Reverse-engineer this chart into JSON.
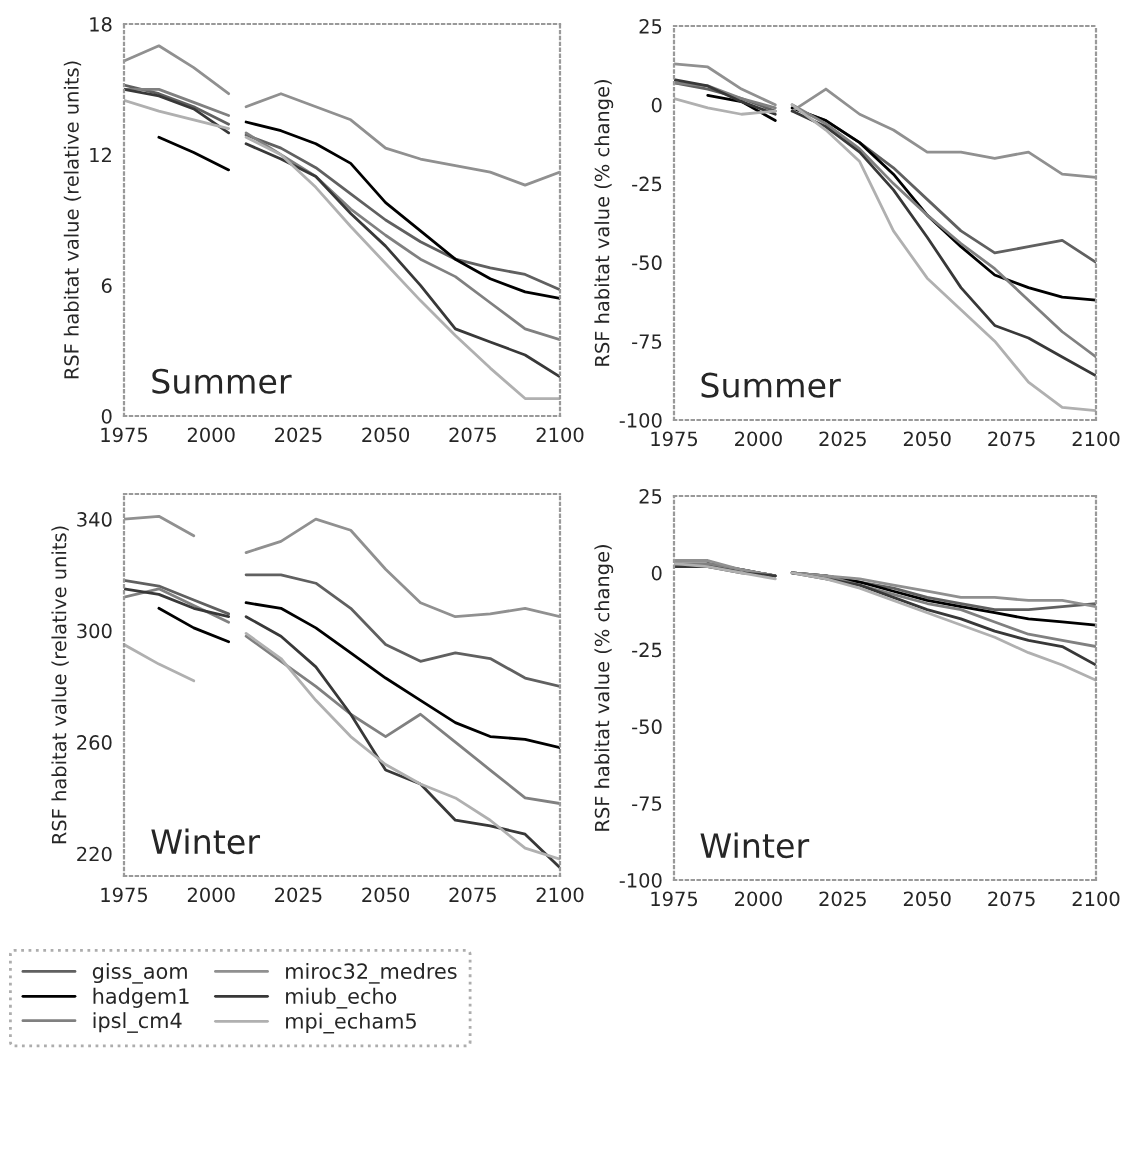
{
  "chart_data": [
    {
      "type": "line",
      "ylabel": "RSF habitat value (relative units)",
      "annotations": [
        "Summer"
      ],
      "x": [
        1975,
        1985,
        1995,
        2005,
        2008,
        2010,
        2020,
        2030,
        2040,
        2050,
        2060,
        2070,
        2080,
        2090,
        2100
      ],
      "xlim": [
        1975,
        2100
      ],
      "xticks": [
        1975,
        2000,
        2025,
        2050,
        2075,
        2100
      ],
      "ylim": [
        0,
        18
      ],
      "yticks": [
        0,
        6,
        12,
        18
      ],
      "grid": false,
      "legend": "bottom",
      "series": [
        {
          "name": "giss_aom",
          "color": "#606060",
          "values": [
            15.2,
            14.8,
            14.2,
            13.4,
            null,
            12.9,
            12.3,
            11.4,
            10.2,
            9.0,
            8.0,
            7.2,
            6.8,
            6.5,
            5.8
          ]
        },
        {
          "name": "hadgem1",
          "color": "#000000",
          "values": [
            null,
            12.8,
            12.1,
            11.3,
            null,
            13.5,
            13.1,
            12.5,
            11.6,
            9.8,
            8.5,
            7.2,
            6.3,
            5.7,
            5.4
          ]
        },
        {
          "name": "ipsl_cm4",
          "color": "#808080",
          "values": [
            15.0,
            15.0,
            14.4,
            13.8,
            null,
            13.0,
            12.0,
            11.0,
            9.5,
            8.3,
            7.2,
            6.4,
            5.2,
            4.0,
            3.5
          ]
        },
        {
          "name": "miroc32_medres",
          "color": "#909090",
          "values": [
            16.3,
            17.0,
            16.0,
            14.8,
            null,
            14.2,
            14.8,
            14.2,
            13.6,
            12.3,
            11.8,
            11.5,
            11.2,
            10.6,
            11.2
          ]
        },
        {
          "name": "miub_echo",
          "color": "#383838",
          "values": [
            15.0,
            14.7,
            14.1,
            13.0,
            null,
            12.5,
            11.8,
            11.0,
            9.3,
            7.8,
            6.0,
            4.0,
            3.4,
            2.8,
            1.8
          ]
        },
        {
          "name": "mpi_echam5",
          "color": "#b0b0b0",
          "values": [
            14.5,
            14.0,
            13.6,
            13.2,
            null,
            12.8,
            12.0,
            10.5,
            8.7,
            7.0,
            5.3,
            3.7,
            2.2,
            0.8,
            0.8
          ]
        }
      ]
    },
    {
      "type": "line",
      "ylabel": "RSF habitat value (% change)",
      "annotations": [
        "Summer"
      ],
      "x": [
        1975,
        1985,
        1995,
        2005,
        2008,
        2010,
        2020,
        2030,
        2040,
        2050,
        2060,
        2070,
        2080,
        2090,
        2100
      ],
      "xlim": [
        1975,
        2100
      ],
      "xticks": [
        1975,
        2000,
        2025,
        2050,
        2075,
        2100
      ],
      "ylim": [
        -100,
        25
      ],
      "yticks": [
        -100,
        -75,
        -50,
        -25,
        0,
        25
      ],
      "grid": false,
      "series": [
        {
          "color": "#606060",
          "values": [
            7,
            5,
            2,
            -2,
            null,
            -1,
            -5,
            -12,
            -20,
            -30,
            -40,
            -47,
            -45,
            -43,
            -50
          ]
        },
        {
          "color": "#000000",
          "values": [
            null,
            3,
            1,
            -5,
            null,
            -1,
            -5,
            -12,
            -22,
            -35,
            -45,
            -54,
            -58,
            -61,
            -62
          ]
        },
        {
          "color": "#808080",
          "values": [
            7,
            6,
            2,
            -1,
            null,
            0,
            -6,
            -14,
            -25,
            -35,
            -44,
            -52,
            -62,
            -72,
            -80
          ]
        },
        {
          "color": "#909090",
          "values": [
            13,
            12,
            5,
            0,
            null,
            -2,
            5,
            -3,
            -8,
            -15,
            -15,
            -17,
            -15,
            -22,
            -23
          ]
        },
        {
          "color": "#383838",
          "values": [
            8,
            6,
            1,
            -3,
            null,
            -2,
            -7,
            -15,
            -27,
            -42,
            -58,
            -70,
            -74,
            -80,
            -86
          ]
        },
        {
          "color": "#b0b0b0",
          "values": [
            2,
            -1,
            -3,
            -2,
            null,
            0,
            -8,
            -18,
            -40,
            -55,
            -65,
            -75,
            -88,
            -96,
            -97
          ]
        }
      ]
    },
    {
      "type": "line",
      "ylabel": "RSF habitat value (relative units)",
      "annotations": [
        "Winter"
      ],
      "x": [
        1975,
        1985,
        1995,
        2005,
        2008,
        2010,
        2020,
        2030,
        2040,
        2050,
        2060,
        2070,
        2080,
        2090,
        2100
      ],
      "xlim": [
        1975,
        2100
      ],
      "xticks": [
        1975,
        2000,
        2025,
        2050,
        2075,
        2100
      ],
      "ylim": [
        212,
        349
      ],
      "yticks": [
        220,
        260,
        300,
        340
      ],
      "grid": false,
      "series": [
        {
          "color": "#606060",
          "values": [
            318,
            316,
            311,
            306,
            null,
            320,
            320,
            317,
            308,
            295,
            289,
            292,
            290,
            283,
            280
          ]
        },
        {
          "color": "#000000",
          "values": [
            null,
            308,
            301,
            296,
            null,
            310,
            308,
            301,
            292,
            283,
            275,
            267,
            262,
            261,
            258
          ]
        },
        {
          "color": "#808080",
          "values": [
            312,
            315,
            309,
            303,
            null,
            298,
            289,
            280,
            270,
            262,
            270,
            260,
            250,
            240,
            238
          ]
        },
        {
          "color": "#909090",
          "values": [
            340,
            341,
            334,
            null,
            null,
            328,
            332,
            340,
            336,
            322,
            310,
            305,
            306,
            308,
            305
          ]
        },
        {
          "color": "#383838",
          "values": [
            315,
            313,
            308,
            305,
            null,
            305,
            298,
            287,
            270,
            250,
            245,
            232,
            230,
            227,
            215
          ]
        },
        {
          "color": "#b0b0b0",
          "values": [
            295,
            288,
            282,
            null,
            null,
            299,
            290,
            275,
            262,
            252,
            245,
            240,
            232,
            222,
            218
          ]
        }
      ]
    },
    {
      "type": "line",
      "ylabel": "RSF habitat value (% change)",
      "annotations": [
        "Winter"
      ],
      "x": [
        1975,
        1985,
        1995,
        2005,
        2008,
        2010,
        2020,
        2030,
        2040,
        2050,
        2060,
        2070,
        2080,
        2090,
        2100
      ],
      "xlim": [
        1975,
        2100
      ],
      "xticks": [
        1975,
        2000,
        2025,
        2050,
        2075,
        2100
      ],
      "ylim": [
        -100,
        25
      ],
      "yticks": [
        -100,
        -75,
        -50,
        -25,
        0,
        25
      ],
      "grid": false,
      "series": [
        {
          "color": "#606060",
          "values": [
            3,
            2,
            1,
            -1,
            null,
            0,
            -1,
            -3,
            -5,
            -8,
            -10,
            -12,
            -12,
            -11,
            -10
          ]
        },
        {
          "color": "#000000",
          "values": [
            null,
            3,
            1,
            -1,
            null,
            0,
            -1,
            -3,
            -6,
            -9,
            -11,
            -13,
            -15,
            -16,
            -17
          ]
        },
        {
          "color": "#808080",
          "values": [
            3,
            3,
            1,
            -1,
            null,
            0,
            -1,
            -4,
            -7,
            -10,
            -12,
            -16,
            -20,
            -22,
            -24
          ]
        },
        {
          "color": "#909090",
          "values": [
            4,
            4,
            1,
            -1,
            null,
            0,
            -1,
            -2,
            -4,
            -6,
            -8,
            -8,
            -9,
            -9,
            -11
          ]
        },
        {
          "color": "#383838",
          "values": [
            2,
            2,
            0,
            -1,
            null,
            0,
            -2,
            -4,
            -8,
            -12,
            -15,
            -19,
            -22,
            -24,
            -30
          ]
        },
        {
          "color": "#b0b0b0",
          "values": [
            3,
            2,
            0,
            -2,
            null,
            0,
            -2,
            -5,
            -9,
            -13,
            -17,
            -21,
            -26,
            -30,
            -35
          ]
        }
      ]
    }
  ]
}
